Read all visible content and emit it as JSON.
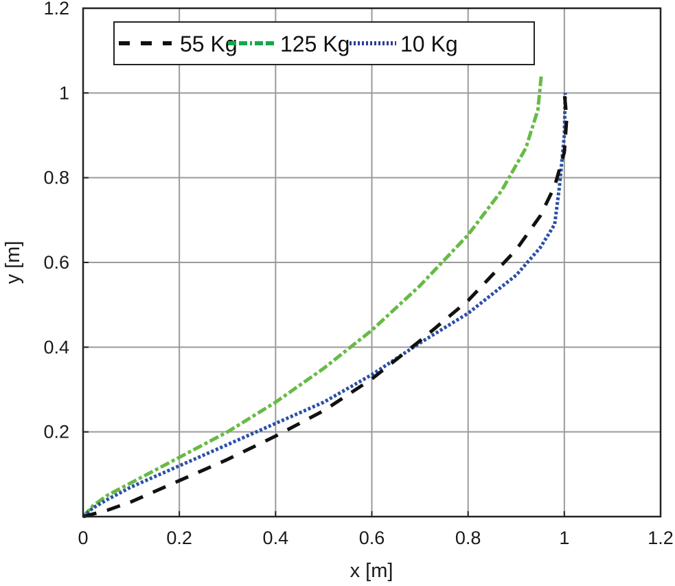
{
  "chart_data": {
    "type": "line",
    "title": "",
    "xlabel": "x [m]",
    "ylabel": "y [m]",
    "xlim": [
      0,
      1.2
    ],
    "ylim": [
      0,
      1.2
    ],
    "xticks": [
      0,
      0.2,
      0.4,
      0.6,
      0.8,
      1,
      1.2
    ],
    "yticks": [
      0.2,
      0.4,
      0.6,
      0.8,
      1,
      1.2
    ],
    "xtick_labels": [
      "0",
      "0.2",
      "0.4",
      "0.6",
      "0.8",
      "1",
      "1.2"
    ],
    "ytick_labels": [
      "0.2",
      "0.4",
      "0.6",
      "0.8",
      "1",
      "1.2"
    ],
    "grid": true,
    "legend_position": "top-left, horizontal",
    "series": [
      {
        "name": "55 Kg",
        "color": "#111111",
        "style": "dashed",
        "x": [
          0,
          0.05,
          0.1,
          0.2,
          0.3,
          0.4,
          0.5,
          0.6,
          0.65,
          0.7,
          0.8,
          0.9,
          0.95,
          0.98,
          1.0,
          1.005,
          1.0
        ],
        "y": [
          0,
          0.015,
          0.035,
          0.085,
          0.135,
          0.19,
          0.25,
          0.325,
          0.37,
          0.415,
          0.51,
          0.63,
          0.71,
          0.78,
          0.86,
          0.94,
          1.0
        ]
      },
      {
        "name": "125 Kg",
        "color": "#66bb44",
        "style": "dashdot",
        "x": [
          0,
          0.02,
          0.05,
          0.1,
          0.2,
          0.3,
          0.4,
          0.5,
          0.6,
          0.7,
          0.8,
          0.87,
          0.92,
          0.945,
          0.952
        ],
        "y": [
          0,
          0.025,
          0.05,
          0.08,
          0.14,
          0.2,
          0.27,
          0.35,
          0.44,
          0.545,
          0.665,
          0.77,
          0.87,
          0.96,
          1.04
        ]
      },
      {
        "name": "10 Kg",
        "color": "#2b4fa8",
        "style": "dotted",
        "x": [
          0,
          0.02,
          0.05,
          0.1,
          0.2,
          0.3,
          0.4,
          0.5,
          0.6,
          0.7,
          0.8,
          0.9,
          0.95,
          0.98,
          0.99,
          1.0,
          1.002
        ],
        "y": [
          0,
          0.02,
          0.04,
          0.07,
          0.12,
          0.17,
          0.22,
          0.27,
          0.335,
          0.41,
          0.48,
          0.57,
          0.635,
          0.69,
          0.78,
          0.9,
          1.0
        ]
      }
    ]
  },
  "legend": {
    "items": [
      {
        "label": "55 Kg"
      },
      {
        "label": "125 Kg"
      },
      {
        "label": "10 Kg"
      }
    ]
  },
  "axes": {
    "xlabel": "x [m]",
    "ylabel": "y [m]",
    "xtick_labels": [
      "0",
      "0.2",
      "0.4",
      "0.6",
      "0.8",
      "1",
      "1.2"
    ],
    "ytick_labels": [
      "0.2",
      "0.4",
      "0.6",
      "0.8",
      "1",
      "1.2"
    ]
  }
}
